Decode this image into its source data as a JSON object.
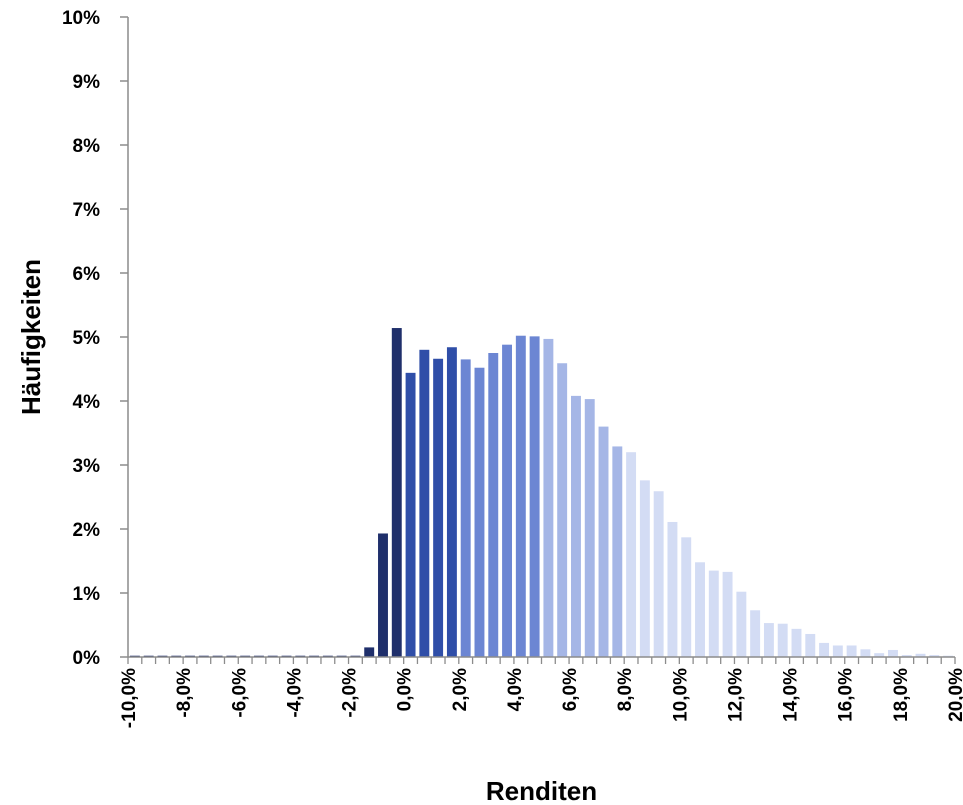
{
  "chart_data": {
    "type": "bar",
    "title": "",
    "xlabel": "Renditen",
    "ylabel": "Häufigkeiten",
    "ylim": [
      0,
      10
    ],
    "xlim": [
      -10.0,
      20.0
    ],
    "bin_width": 0.5,
    "grid": false,
    "legend": "none",
    "yticks": [
      "0%",
      "1%",
      "2%",
      "3%",
      "4%",
      "5%",
      "6%",
      "7%",
      "8%",
      "9%",
      "10%"
    ],
    "xticks": [
      "-10,0%",
      "-8,0%",
      "-6,0%",
      "-4,0%",
      "-2,0%",
      "0,0%",
      "2,0%",
      "4,0%",
      "6,0%",
      "8,0%",
      "10,0%",
      "12,0%",
      "14,0%",
      "16,0%",
      "18,0%",
      "20,0%"
    ],
    "xtick_values": [
      -10,
      -8,
      -6,
      -4,
      -2,
      0,
      2,
      4,
      6,
      8,
      10,
      12,
      14,
      16,
      18,
      20
    ],
    "x": [
      -9.75,
      -9.25,
      -8.75,
      -8.25,
      -7.75,
      -7.25,
      -6.75,
      -6.25,
      -5.75,
      -5.25,
      -4.75,
      -4.25,
      -3.75,
      -3.25,
      -2.75,
      -2.25,
      -1.75,
      -1.25,
      -0.75,
      -0.25,
      0.25,
      0.75,
      1.25,
      1.75,
      2.25,
      2.75,
      3.25,
      3.75,
      4.25,
      4.75,
      5.25,
      5.75,
      6.25,
      6.75,
      7.25,
      7.75,
      8.25,
      8.75,
      9.25,
      9.75,
      10.25,
      10.75,
      11.25,
      11.75,
      12.25,
      12.75,
      13.25,
      13.75,
      14.25,
      14.75,
      15.25,
      15.75,
      16.25,
      16.75,
      17.25,
      17.75,
      18.25,
      18.75,
      19.25,
      19.75
    ],
    "values": [
      0.02,
      0.02,
      0.02,
      0.02,
      0.02,
      0.02,
      0.02,
      0.02,
      0.02,
      0.02,
      0.02,
      0.02,
      0.02,
      0.02,
      0.02,
      0.02,
      0.02,
      0.15,
      1.93,
      5.14,
      4.44,
      4.8,
      4.66,
      4.84,
      4.65,
      4.52,
      4.75,
      4.88,
      5.02,
      5.01,
      4.97,
      4.59,
      4.08,
      4.03,
      3.6,
      3.29,
      3.2,
      2.76,
      2.59,
      2.11,
      1.87,
      1.48,
      1.35,
      1.33,
      1.02,
      0.73,
      0.53,
      0.52,
      0.44,
      0.36,
      0.22,
      0.18,
      0.18,
      0.12,
      0.06,
      0.11,
      0.03,
      0.05,
      0.03,
      0.02
    ],
    "colors": {
      "band1": "#1f2f6b",
      "band2": "#2f4ea8",
      "band3": "#6c86d3",
      "band4": "#a5b6e6",
      "band5": "#d3dcf4",
      "axis": "#8c8c8c"
    }
  }
}
